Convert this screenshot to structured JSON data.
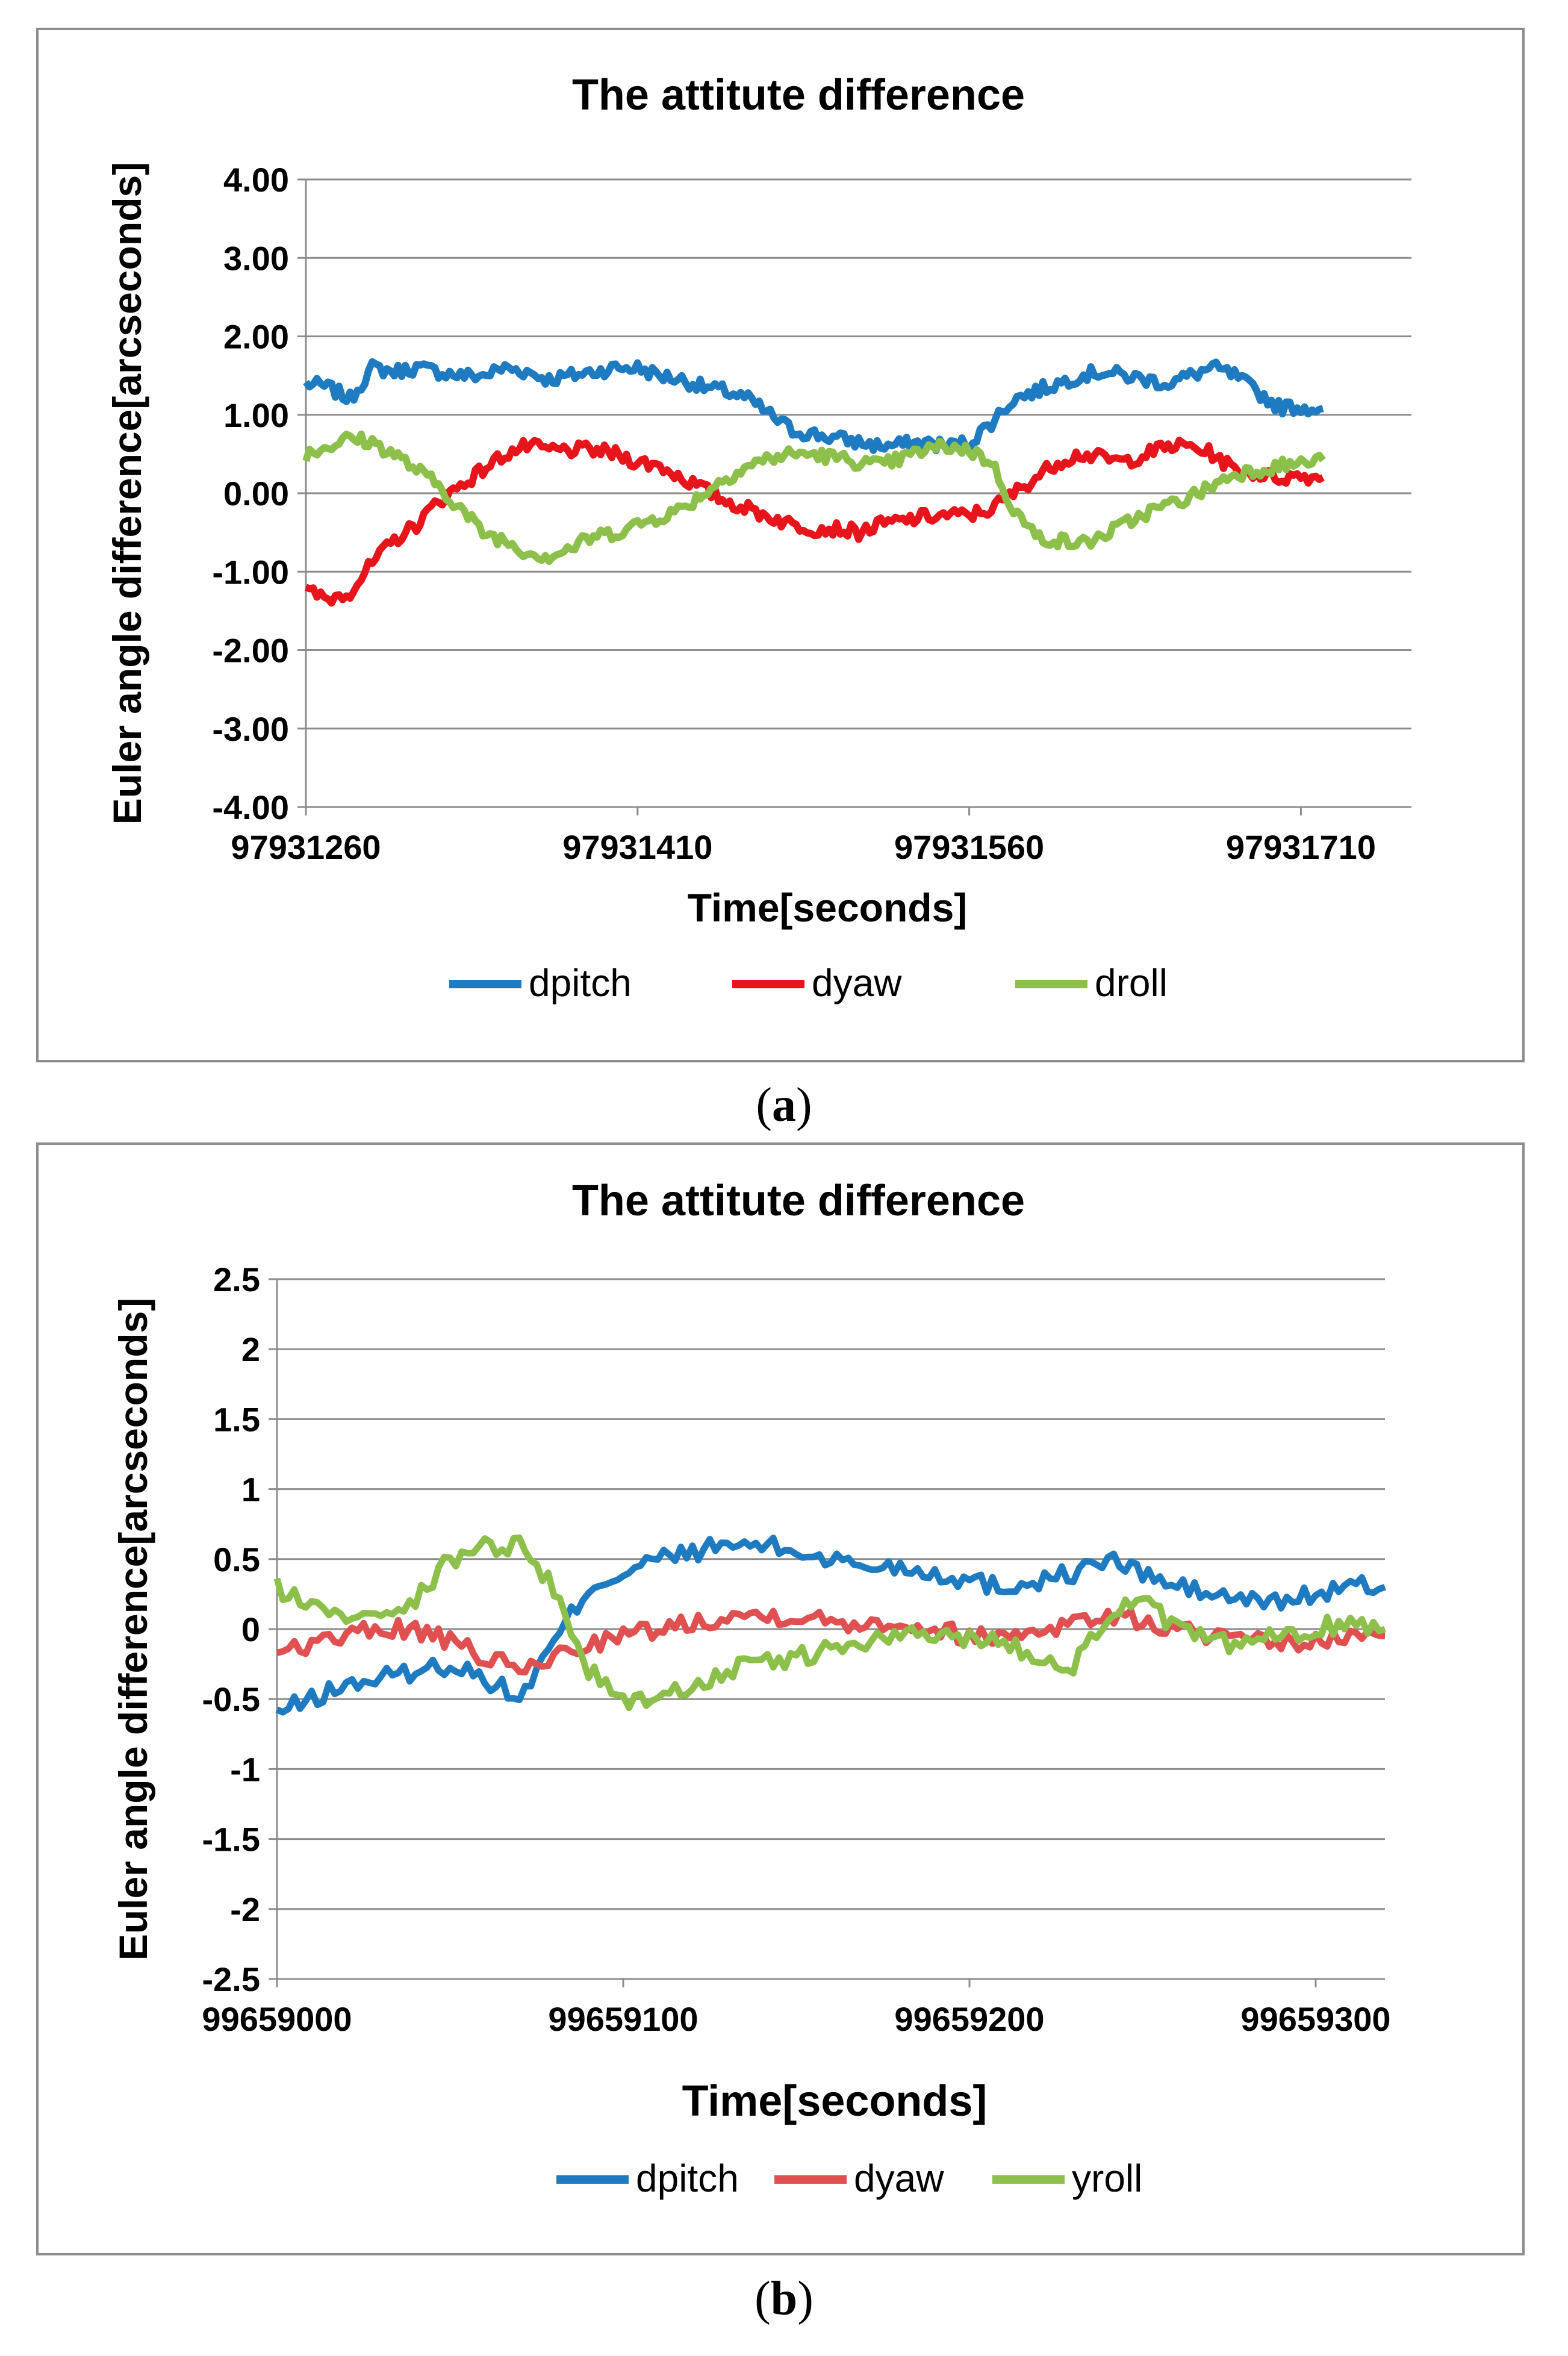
{
  "chart_data": [
    {
      "type": "line",
      "panel_label": "a",
      "title": "The attitute difference",
      "xlabel": "Time[seconds]",
      "ylabel": "Euler angle difference[arcseconds]",
      "xlim": [
        97931260,
        97931760
      ],
      "ylim": [
        -4,
        4
      ],
      "x_ticks": [
        97931260,
        97931410,
        97931560,
        97931710
      ],
      "x_tick_labels": [
        "97931260",
        "97931410",
        "97931560",
        "97931710"
      ],
      "y_ticks": [
        -4,
        -3,
        -2,
        -1,
        0,
        1,
        2,
        3,
        4
      ],
      "y_tick_labels": [
        "-4.00",
        "-3.00",
        "-2.00",
        "-1.00",
        "0.00",
        "1.00",
        "2.00",
        "3.00",
        "4.00"
      ],
      "grid": "horizontal",
      "legend": "bottom",
      "x_start": 97931260,
      "x_step": 10,
      "noise": 0.09,
      "series": [
        {
          "name": "dpitch",
          "color": "#1F7BC1",
          "values": [
            1.4,
            1.35,
            1.2,
            1.6,
            1.55,
            1.6,
            1.55,
            1.5,
            1.5,
            1.6,
            1.55,
            1.45,
            1.5,
            1.55,
            1.6,
            1.6,
            1.5,
            1.45,
            1.35,
            1.3,
            1.2,
            1.0,
            0.8,
            0.75,
            0.7,
            0.65,
            0.6,
            0.62,
            0.65,
            0.6,
            0.65,
            0.9,
            1.2,
            1.3,
            1.4,
            1.5,
            1.55,
            1.5,
            1.45,
            1.4,
            1.5,
            1.6,
            1.5,
            1.3,
            1.1,
            1.1,
            1.08
          ]
        },
        {
          "name": "dyaw",
          "color": "#E8141B",
          "values": [
            -1.25,
            -1.35,
            -1.25,
            -0.9,
            -0.6,
            -0.4,
            -0.1,
            0.1,
            0.3,
            0.5,
            0.6,
            0.55,
            0.55,
            0.55,
            0.5,
            0.4,
            0.35,
            0.2,
            0.05,
            -0.1,
            -0.2,
            -0.3,
            -0.4,
            -0.45,
            -0.45,
            -0.5,
            -0.4,
            -0.35,
            -0.3,
            -0.28,
            -0.28,
            -0.2,
            0.0,
            0.2,
            0.4,
            0.5,
            0.45,
            0.4,
            0.5,
            0.6,
            0.6,
            0.5,
            0.3,
            0.25,
            0.2,
            0.22,
            0.2
          ]
        },
        {
          "name": "droll",
          "color": "#8DC04A",
          "values": [
            0.5,
            0.6,
            0.7,
            0.65,
            0.5,
            0.3,
            0.1,
            -0.2,
            -0.5,
            -0.6,
            -0.75,
            -0.8,
            -0.7,
            -0.55,
            -0.5,
            -0.4,
            -0.3,
            -0.2,
            0.0,
            0.2,
            0.35,
            0.45,
            0.5,
            0.5,
            0.45,
            0.4,
            0.35,
            0.45,
            0.55,
            0.6,
            0.55,
            0.4,
            -0.2,
            -0.55,
            -0.6,
            -0.65,
            -0.55,
            -0.4,
            -0.25,
            -0.15,
            -0.05,
            0.1,
            0.25,
            0.3,
            0.35,
            0.38,
            0.42
          ]
        }
      ]
    },
    {
      "type": "line",
      "panel_label": "b",
      "title": "The attitute difference",
      "xlabel": "Time[seconds]",
      "ylabel": "Euler angle difference[arcseconds]",
      "xlim": [
        99659000,
        99659320
      ],
      "ylim": [
        -2.5,
        2.5
      ],
      "x_ticks": [
        99659000,
        99659100,
        99659200,
        99659300
      ],
      "x_tick_labels": [
        "99659000",
        "99659100",
        "99659200",
        "99659300"
      ],
      "y_ticks": [
        -2.5,
        -2,
        -1.5,
        -1,
        -0.5,
        0,
        0.5,
        1,
        1.5,
        2,
        2.5
      ],
      "y_tick_labels": [
        "-2.5",
        "-2",
        "-1.5",
        "-1",
        "-0.5",
        "0",
        "0.5",
        "1",
        "1.5",
        "2",
        "2.5"
      ],
      "grid": "horizontal",
      "legend": "bottom",
      "x_start": 99659000,
      "x_step": 10,
      "noise": 0.07,
      "series": [
        {
          "name": "dpitch",
          "color": "#1F7BC1",
          "values": [
            -0.6,
            -0.5,
            -0.4,
            -0.35,
            -0.3,
            -0.25,
            -0.35,
            -0.5,
            -0.1,
            0.3,
            0.4,
            0.5,
            0.55,
            0.6,
            0.6,
            0.55,
            0.5,
            0.45,
            0.45,
            0.4,
            0.35,
            0.3,
            0.35,
            0.4,
            0.5,
            0.4,
            0.3,
            0.25,
            0.2,
            0.2,
            0.25,
            0.3,
            0.3
          ]
        },
        {
          "name": "dyaw",
          "color": "#E05050",
          "values": [
            -0.15,
            -0.1,
            -0.05,
            0.0,
            0.0,
            -0.1,
            -0.2,
            -0.3,
            -0.2,
            -0.1,
            -0.05,
            0.0,
            0.05,
            0.1,
            0.1,
            0.1,
            0.05,
            0.05,
            0.05,
            0.0,
            -0.05,
            -0.05,
            0.0,
            0.05,
            0.1,
            0.05,
            0.0,
            -0.05,
            -0.1,
            -0.1,
            -0.1,
            -0.05,
            -0.05
          ]
        },
        {
          "name": "yroll",
          "color": "#8DC04A",
          "values": [
            0.3,
            0.15,
            0.1,
            0.15,
            0.2,
            0.5,
            0.6,
            0.6,
            0.3,
            -0.3,
            -0.5,
            -0.5,
            -0.4,
            -0.3,
            -0.25,
            -0.2,
            -0.15,
            -0.1,
            -0.05,
            -0.05,
            -0.05,
            -0.1,
            -0.2,
            -0.25,
            0.1,
            0.2,
            0.0,
            -0.1,
            -0.1,
            -0.05,
            0.0,
            0.05,
            0.0
          ]
        }
      ]
    }
  ]
}
